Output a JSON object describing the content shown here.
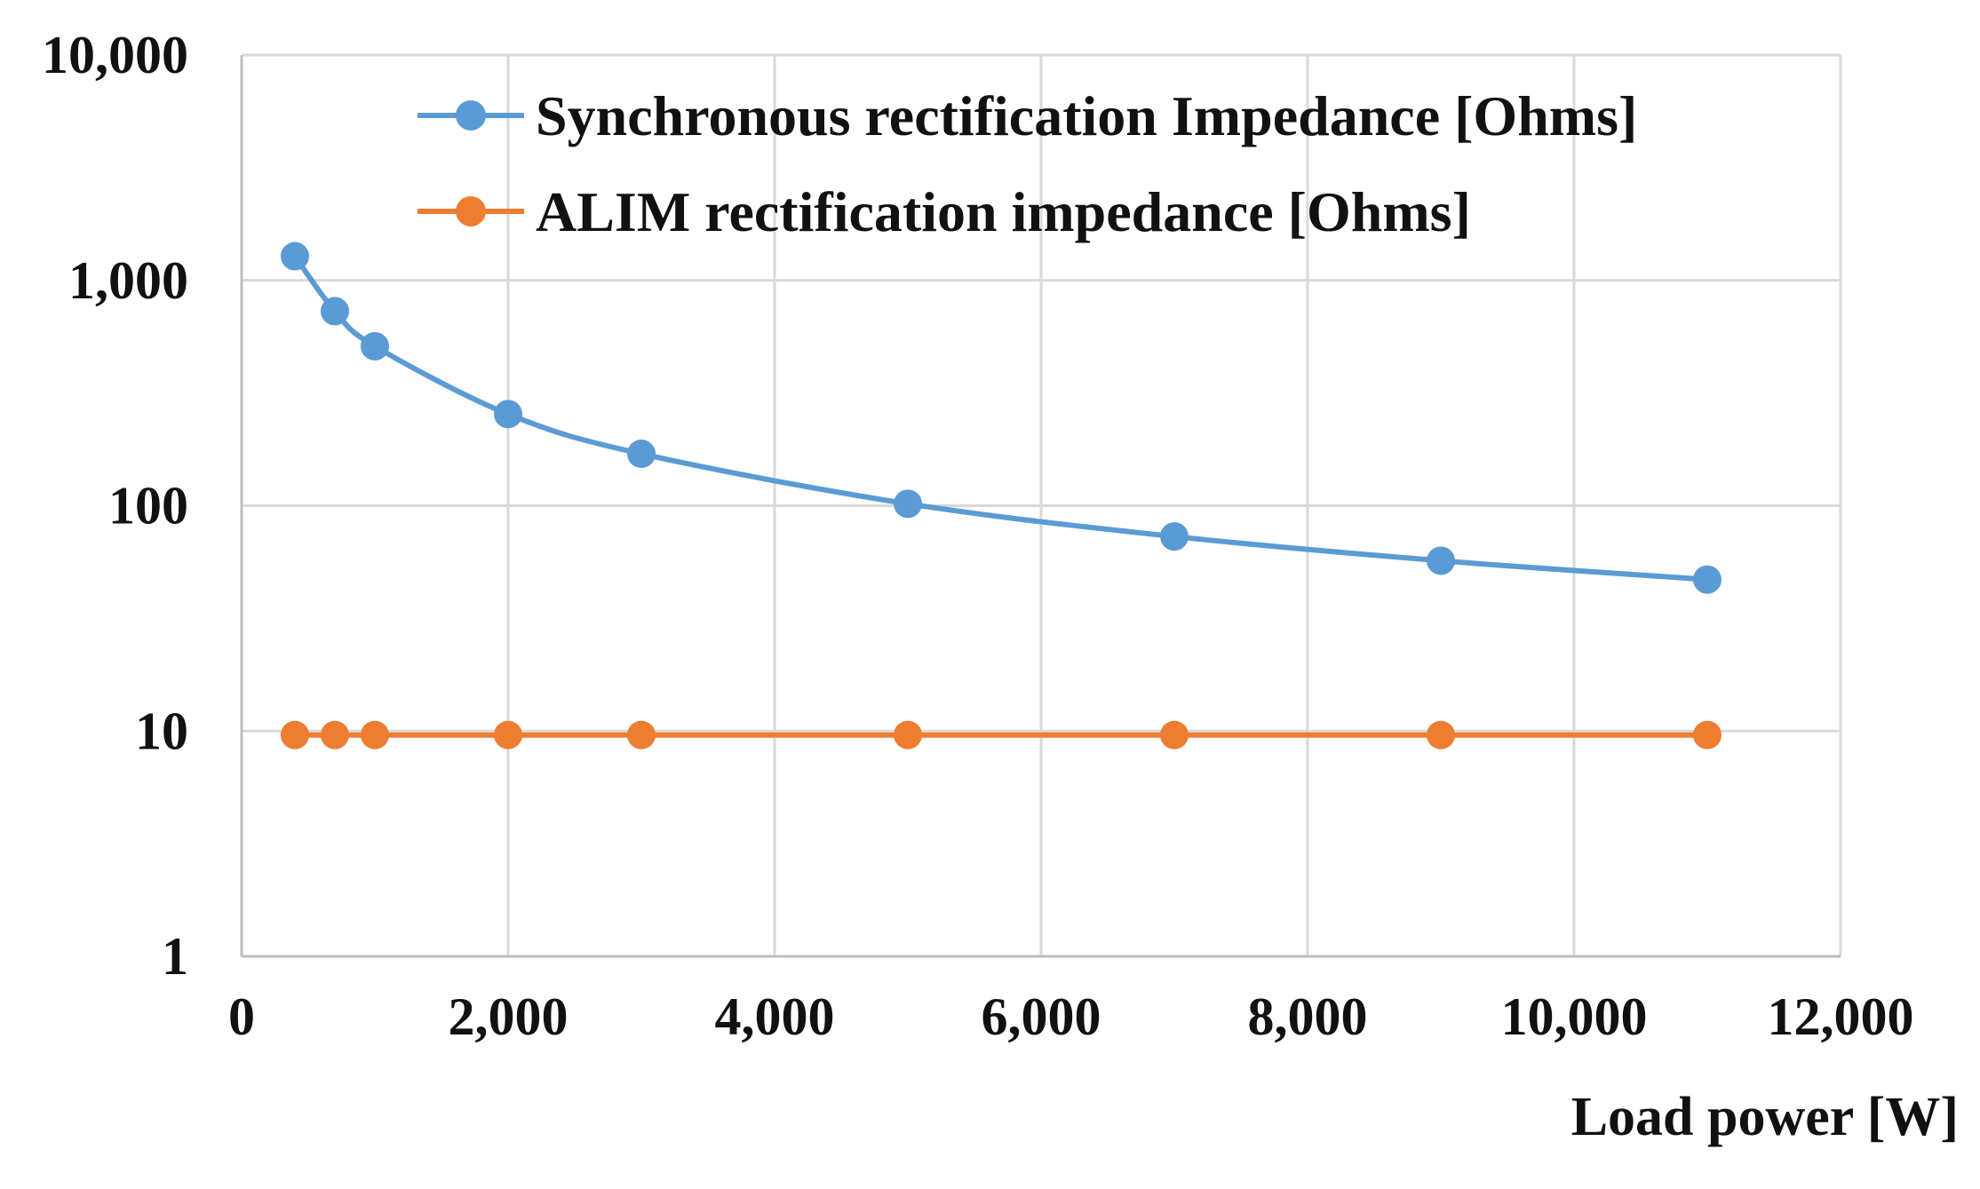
{
  "chart_data": {
    "type": "line",
    "title": "",
    "xlabel": "Load power [W]",
    "ylabel": "",
    "x_scale": "linear",
    "y_scale": "log",
    "xlim": [
      0,
      12000
    ],
    "ylim": [
      1,
      10000
    ],
    "x_ticks": [
      0,
      2000,
      4000,
      6000,
      8000,
      10000,
      12000
    ],
    "x_tick_labels": [
      "0",
      "2,000",
      "4,000",
      "6,000",
      "8,000",
      "10,000",
      "12,000"
    ],
    "y_ticks": [
      1,
      10,
      100,
      1000,
      10000
    ],
    "y_tick_labels": [
      "1",
      "10",
      "100",
      "1,000",
      "10,000"
    ],
    "grid": true,
    "legend_position": "top-right",
    "x": [
      400,
      700,
      1000,
      2000,
      3000,
      5000,
      7000,
      9000,
      11000
    ],
    "series": [
      {
        "name": "Synchronous rectification Impedance [Ohms]",
        "color": "#5B9BD5",
        "smooth": true,
        "values": [
          1280,
          730,
          510,
          255,
          170,
          102,
          73,
          57,
          47
        ]
      },
      {
        "name": "ALIM rectification impedance [Ohms]",
        "color": "#ED7D31",
        "smooth": false,
        "values": [
          9.6,
          9.6,
          9.6,
          9.6,
          9.6,
          9.6,
          9.6,
          9.6,
          9.6
        ]
      }
    ],
    "colors": {
      "grid": "#D9D9D9",
      "axis": "#BFBFBF",
      "text": "#111111"
    }
  }
}
